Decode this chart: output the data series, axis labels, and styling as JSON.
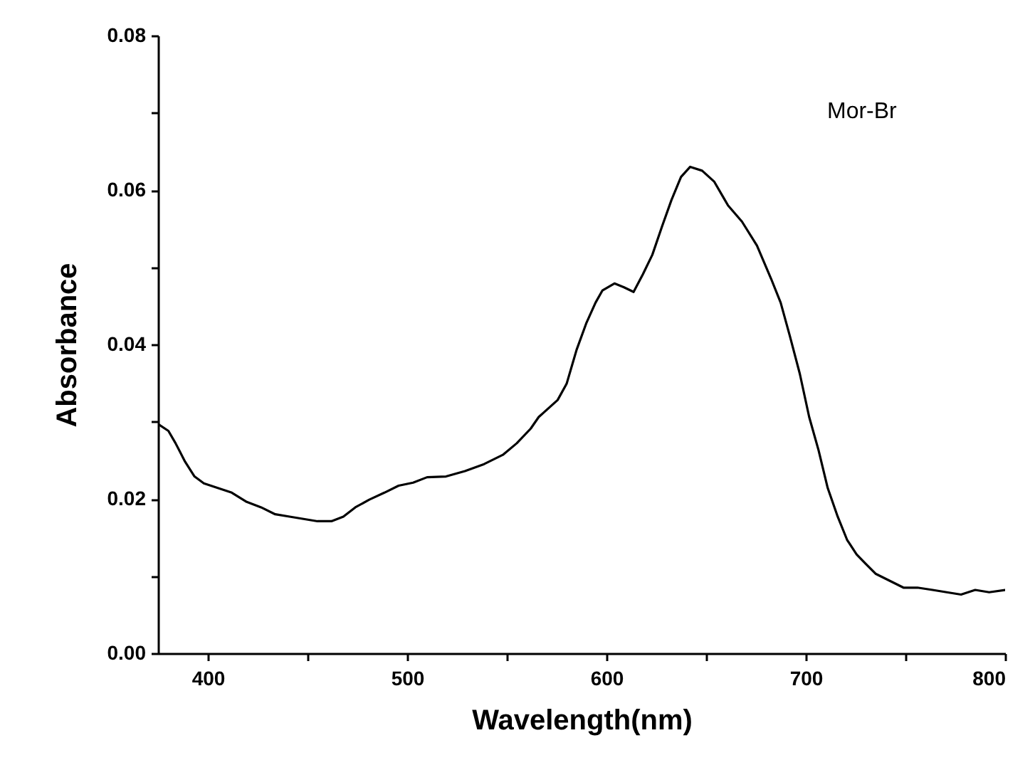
{
  "chart_data": {
    "type": "line",
    "xlabel": "Wavelength(nm)",
    "ylabel": "Absorbance",
    "xlim": [
      375,
      800
    ],
    "ylim": [
      0,
      0.08
    ],
    "xticks": [
      400,
      {
        "value": 450,
        "label": null
      },
      500,
      {
        "value": 550,
        "label": null
      },
      600,
      {
        "value": 650,
        "label": null
      },
      700,
      {
        "value": 750,
        "label": null
      },
      800
    ],
    "yticks": [
      {
        "value": 0,
        "label": "0.00"
      },
      {
        "value": 0.01,
        "label": null
      },
      {
        "value": 0.02,
        "label": "0.02"
      },
      {
        "value": 0.03,
        "label": null
      },
      {
        "value": 0.04,
        "label": "0.04"
      },
      {
        "value": 0.05,
        "label": null
      },
      {
        "value": 0.06,
        "label": "0.06"
      },
      {
        "value": 0.07,
        "label": null
      },
      {
        "value": 0.08,
        "label": "0.08"
      }
    ],
    "grid": false,
    "marker": "none",
    "line_style": "solid",
    "series": [
      {
        "name": "Mor-Br",
        "color": "#000000",
        "x": [
          375,
          380.2,
          383.8,
          388.6,
          393.3,
          398,
          405,
          412,
          419.5,
          426.7,
          433.8,
          441,
          448,
          455,
          462,
          468,
          474,
          481,
          488.6,
          495.7,
          503,
          510,
          519.5,
          529,
          538.6,
          548,
          555,
          562,
          566,
          575.5,
          580,
          585,
          589.8,
          594.5,
          598,
          604,
          608.8,
          613.6,
          618.3,
          623,
          627.9,
          632.6,
          637.4,
          642,
          648,
          654,
          661,
          668,
          675.5,
          682.6,
          687.4,
          692,
          697,
          701.7,
          706.4,
          711,
          716,
          720.7,
          725.5,
          730,
          735,
          742,
          749,
          756,
          763.6,
          770.7,
          777.9,
          785,
          792,
          800
        ],
        "values": [
          0.0297,
          0.0288,
          0.0272,
          0.0248,
          0.0229,
          0.022,
          0.0214,
          0.0208,
          0.0196,
          0.0189,
          0.018,
          0.0177,
          0.0174,
          0.0171,
          0.0171,
          0.0177,
          0.0189,
          0.0199,
          0.0208,
          0.0217,
          0.0221,
          0.0228,
          0.0229,
          0.0236,
          0.0245,
          0.0257,
          0.0272,
          0.0291,
          0.0306,
          0.0328,
          0.0349,
          0.0393,
          0.0427,
          0.0454,
          0.047,
          0.0479,
          0.0474,
          0.0468,
          0.0491,
          0.0516,
          0.0553,
          0.0587,
          0.0617,
          0.063,
          0.0625,
          0.0611,
          0.058,
          0.0559,
          0.0528,
          0.0485,
          0.0454,
          0.0411,
          0.0362,
          0.0306,
          0.0263,
          0.0214,
          0.0177,
          0.0147,
          0.0128,
          0.0116,
          0.0103,
          0.0094,
          0.0085,
          0.0085,
          0.0082,
          0.0079,
          0.0076,
          0.0082,
          0.0079,
          0.0082
        ]
      }
    ]
  }
}
